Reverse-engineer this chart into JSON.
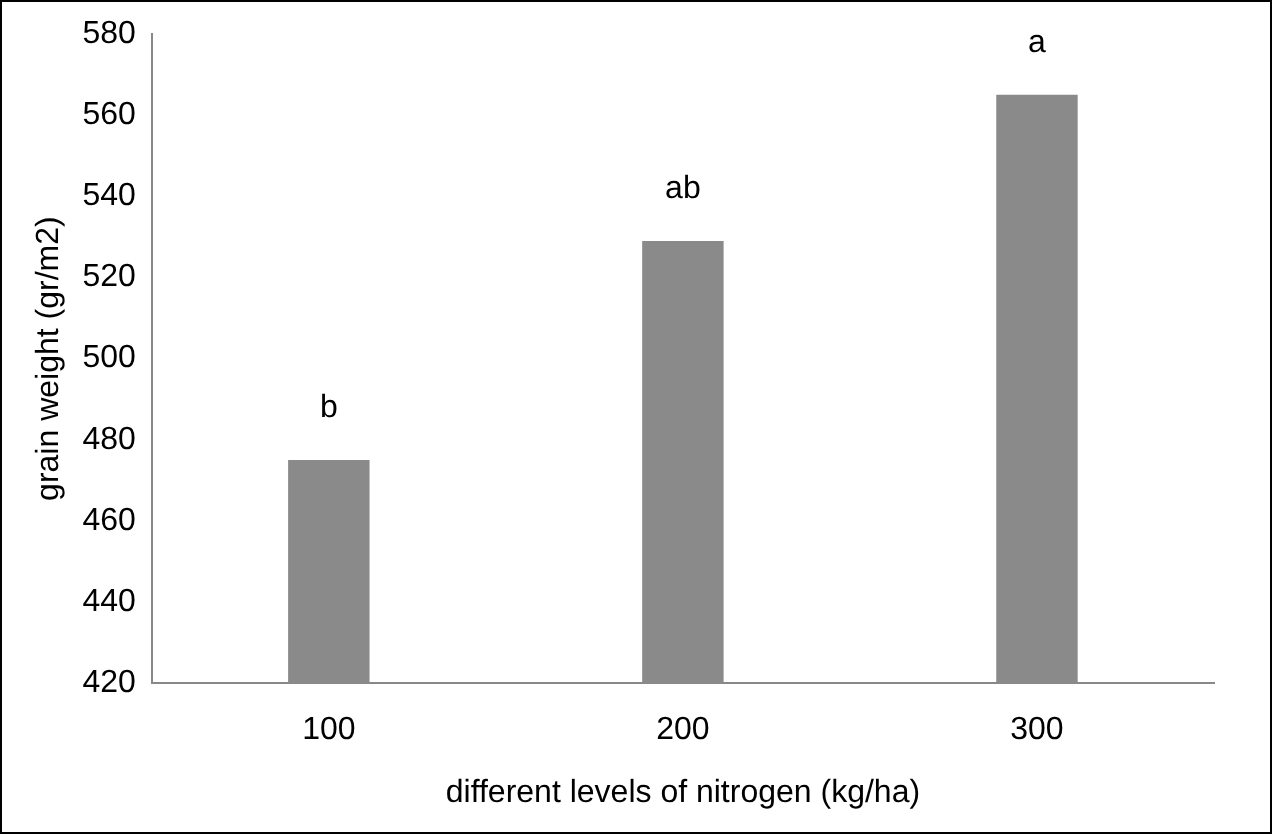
{
  "chart_data": {
    "type": "bar",
    "xlabel": "different levels of nitrogen (kg/ha)",
    "ylabel": "grain weight (gr/m2)",
    "categories": [
      "100",
      "200",
      "300"
    ],
    "values": [
      475,
      529,
      565
    ],
    "color": "#8a8a8a",
    "ylim": [
      420,
      580
    ],
    "yticks": [
      420,
      440,
      460,
      480,
      500,
      520,
      540,
      560,
      580
    ],
    "grid": false,
    "legend": false,
    "annotations": [
      {
        "text": "b",
        "x": "100",
        "y": 475
      },
      {
        "text": "ab",
        "x": "200",
        "y": 529
      },
      {
        "text": "a",
        "x": "300",
        "y": 565
      }
    ]
  }
}
